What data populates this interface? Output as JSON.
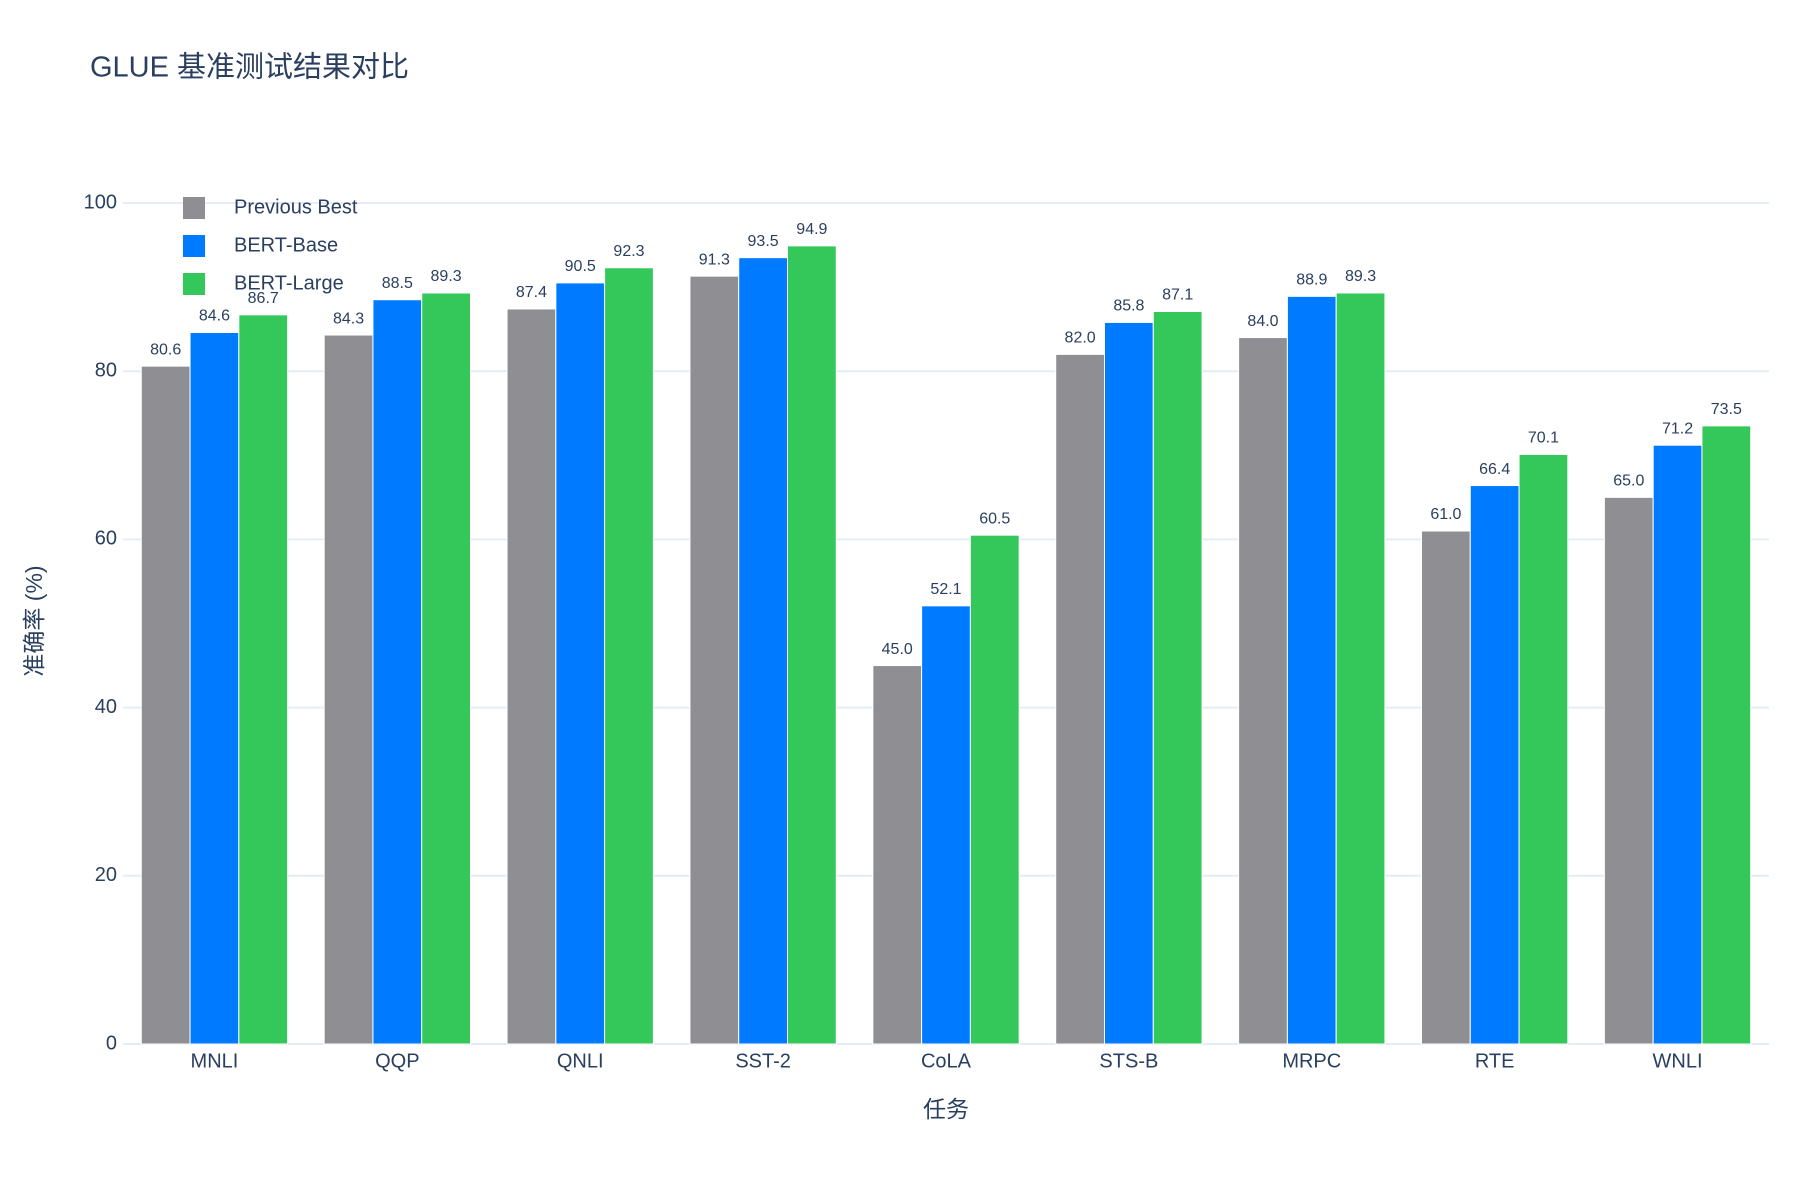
{
  "chart_data": {
    "type": "bar",
    "title": "GLUE 基准测试结果对比",
    "x_label": "任务",
    "y_label": "准确率 (%)",
    "categories": [
      "MNLI",
      "QQP",
      "QNLI",
      "SST-2",
      "CoLA",
      "STS-B",
      "MRPC",
      "RTE",
      "WNLI"
    ],
    "series": [
      {
        "name": "Previous Best",
        "color": "#8e8e93",
        "values": [
          80.6,
          84.3,
          87.4,
          91.3,
          45.0,
          82.0,
          84.0,
          61.0,
          65.0
        ],
        "value_labels": [
          "80.6",
          "84.3",
          "87.4",
          "91.3",
          "45.0",
          "82.0",
          "84.0",
          "61.0",
          "65.0"
        ]
      },
      {
        "name": "BERT-Base",
        "color": "#007aff",
        "values": [
          84.6,
          88.5,
          90.5,
          93.5,
          52.1,
          85.8,
          88.9,
          66.4,
          71.2
        ],
        "value_labels": [
          "84.6",
          "88.5",
          "90.5",
          "93.5",
          "52.1",
          "85.8",
          "88.9",
          "66.4",
          "71.2"
        ]
      },
      {
        "name": "BERT-Large",
        "color": "#34c759",
        "values": [
          86.7,
          89.3,
          92.3,
          94.9,
          60.5,
          87.1,
          89.3,
          70.1,
          73.5
        ],
        "value_labels": [
          "86.7",
          "89.3",
          "92.3",
          "94.9",
          "60.5",
          "87.1",
          "89.3",
          "70.1",
          "73.5"
        ]
      }
    ],
    "ylim": [
      0,
      100
    ],
    "yticks": [
      0,
      20,
      40,
      60,
      80,
      100
    ],
    "grid": true,
    "legend": "top-left"
  }
}
